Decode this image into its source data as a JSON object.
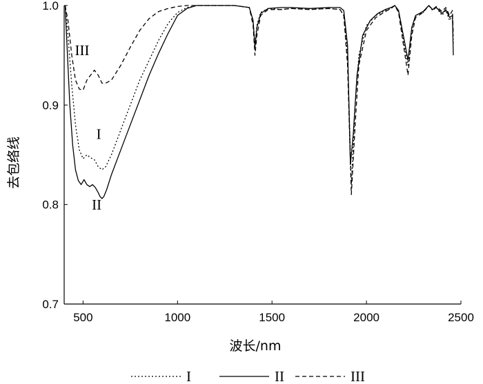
{
  "chart_data": {
    "type": "line",
    "xlabel": "波长/nm",
    "ylabel": "去包络线",
    "xlim": [
      400,
      2500
    ],
    "ylim": [
      0.7,
      1.0
    ],
    "x_ticks": [
      500,
      1000,
      1500,
      2000,
      2500
    ],
    "y_ticks": [
      0.7,
      0.8,
      0.9,
      1.0
    ],
    "x_tick_labels": [
      "500",
      "1000",
      "1500",
      "2000",
      "2500"
    ],
    "y_tick_labels": [
      "0.7",
      "0.8",
      "0.9",
      "1.0"
    ],
    "grid": false,
    "legend_position": "bottom",
    "annotations": [
      {
        "text": "III",
        "x": 495,
        "y": 0.95
      },
      {
        "text": "I",
        "x": 583,
        "y": 0.866
      },
      {
        "text": "II",
        "x": 572,
        "y": 0.795
      }
    ],
    "series": [
      {
        "name": "I",
        "style": "dotted",
        "x": [
          405,
          420,
          440,
          460,
          480,
          500,
          520,
          540,
          560,
          580,
          600,
          620,
          650,
          700,
          750,
          800,
          850,
          900,
          950,
          1000,
          1050,
          1100,
          1200,
          1300,
          1380,
          1400,
          1410,
          1420,
          1440,
          1480,
          1550,
          1600,
          1700,
          1800,
          1860,
          1880,
          1900,
          1920,
          1940,
          1960,
          2000,
          2050,
          2100,
          2130,
          2150,
          2170,
          2200,
          2220,
          2240,
          2260,
          2300,
          2330,
          2350,
          2370,
          2400,
          2420,
          2440,
          2455,
          2460
        ],
        "y": [
          1.0,
          0.97,
          0.92,
          0.88,
          0.855,
          0.846,
          0.85,
          0.847,
          0.845,
          0.838,
          0.835,
          0.838,
          0.85,
          0.875,
          0.9,
          0.925,
          0.945,
          0.965,
          0.982,
          0.993,
          0.998,
          1.0,
          1.0,
          1.0,
          0.998,
          0.985,
          0.96,
          0.98,
          0.993,
          0.997,
          0.996,
          0.997,
          0.996,
          0.997,
          0.996,
          0.99,
          0.95,
          0.82,
          0.9,
          0.95,
          0.98,
          0.99,
          0.995,
          0.997,
          1.0,
          0.995,
          0.96,
          0.94,
          0.975,
          0.99,
          0.993,
          1.0,
          0.995,
          0.998,
          0.99,
          0.995,
          0.985,
          0.99,
          0.96
        ]
      },
      {
        "name": "II",
        "style": "solid",
        "x": [
          405,
          415,
          430,
          445,
          460,
          475,
          490,
          505,
          520,
          535,
          550,
          565,
          580,
          590,
          600,
          610,
          625,
          650,
          700,
          750,
          800,
          850,
          900,
          950,
          1000,
          1050,
          1100,
          1200,
          1300,
          1380,
          1400,
          1410,
          1420,
          1440,
          1480,
          1550,
          1600,
          1700,
          1800,
          1860,
          1880,
          1900,
          1915,
          1930,
          1950,
          1980,
          2020,
          2060,
          2100,
          2130,
          2150,
          2170,
          2200,
          2220,
          2240,
          2260,
          2300,
          2330,
          2350,
          2370,
          2400,
          2420,
          2440,
          2455,
          2460
        ],
        "y": [
          1.0,
          0.96,
          0.9,
          0.86,
          0.835,
          0.824,
          0.82,
          0.825,
          0.82,
          0.818,
          0.82,
          0.817,
          0.812,
          0.808,
          0.806,
          0.808,
          0.815,
          0.83,
          0.855,
          0.88,
          0.905,
          0.93,
          0.952,
          0.972,
          0.99,
          0.997,
          1.0,
          1.0,
          1.0,
          0.998,
          0.985,
          0.958,
          0.978,
          0.992,
          0.997,
          0.998,
          0.998,
          0.997,
          0.998,
          0.998,
          0.995,
          0.96,
          0.84,
          0.87,
          0.93,
          0.97,
          0.985,
          0.992,
          0.996,
          0.998,
          1.0,
          0.995,
          0.965,
          0.945,
          0.978,
          0.99,
          0.994,
          1.0,
          0.996,
          0.998,
          0.992,
          0.996,
          0.988,
          0.99,
          0.95
        ]
      },
      {
        "name": "III",
        "style": "dashed",
        "x": [
          405,
          420,
          440,
          460,
          480,
          500,
          520,
          540,
          560,
          580,
          600,
          620,
          650,
          700,
          750,
          800,
          850,
          900,
          950,
          1000,
          1050,
          1100,
          1200,
          1300,
          1380,
          1400,
          1410,
          1420,
          1440,
          1480,
          1550,
          1600,
          1700,
          1800,
          1860,
          1880,
          1900,
          1920,
          1940,
          1960,
          2000,
          2050,
          2100,
          2130,
          2150,
          2170,
          2200,
          2220,
          2240,
          2260,
          2300,
          2330,
          2350,
          2370,
          2400,
          2420,
          2440,
          2455,
          2460
        ],
        "y": [
          1.0,
          0.985,
          0.95,
          0.925,
          0.916,
          0.915,
          0.925,
          0.93,
          0.935,
          0.93,
          0.922,
          0.922,
          0.925,
          0.94,
          0.958,
          0.975,
          0.987,
          0.994,
          0.997,
          0.999,
          1.0,
          1.0,
          1.0,
          1.0,
          0.998,
          0.98,
          0.95,
          0.97,
          0.99,
          0.996,
          0.996,
          0.997,
          0.996,
          0.997,
          0.996,
          0.99,
          0.94,
          0.81,
          0.88,
          0.94,
          0.975,
          0.988,
          0.994,
          0.997,
          1.0,
          0.993,
          0.955,
          0.93,
          0.97,
          0.988,
          0.993,
          1.0,
          0.996,
          0.999,
          0.994,
          0.998,
          0.99,
          0.995,
          0.97
        ]
      }
    ]
  }
}
